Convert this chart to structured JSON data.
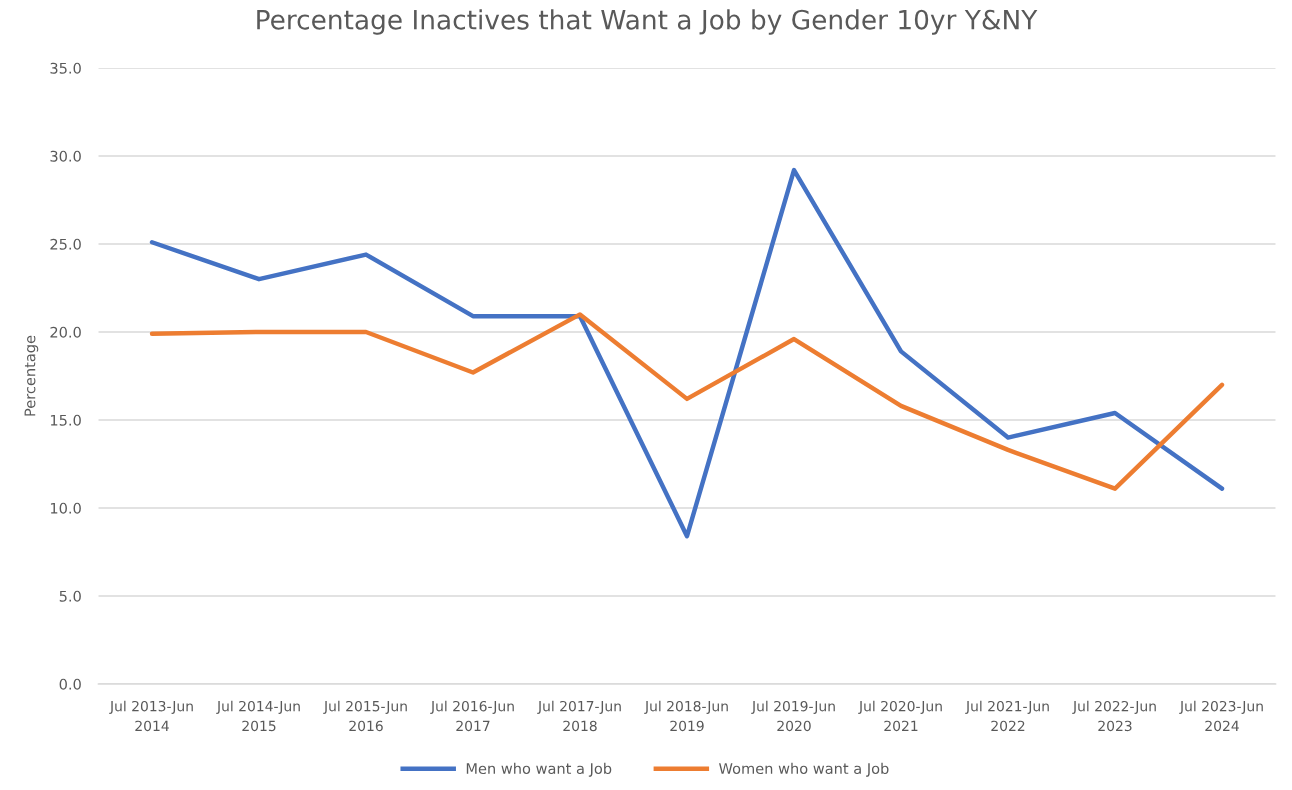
{
  "chart_data": {
    "type": "line",
    "title": "Percentage Inactives that Want a Job by Gender 10yr Y&NY",
    "ylabel": "Percentage",
    "categories": [
      "Jul 2013-Jun\n2014",
      "Jul 2014-Jun\n2015",
      "Jul 2015-Jun\n2016",
      "Jul 2016-Jun\n2017",
      "Jul 2017-Jun\n2018",
      "Jul 2018-Jun\n2019",
      "Jul 2019-Jun\n2020",
      "Jul 2020-Jun\n2021",
      "Jul 2021-Jun\n2022",
      "Jul 2022-Jun\n2023",
      "Jul 2023-Jun\n2024"
    ],
    "series": [
      {
        "name": "Men who want a Job",
        "color": "#4472c4",
        "values": [
          25.1,
          23.0,
          24.4,
          20.9,
          20.9,
          8.4,
          29.2,
          18.9,
          14.0,
          15.4,
          11.1
        ]
      },
      {
        "name": "Women who want a Job",
        "color": "#ed7d31",
        "values": [
          19.9,
          20.0,
          20.0,
          17.7,
          21.0,
          16.2,
          19.6,
          15.8,
          13.3,
          11.1,
          17.0
        ]
      }
    ],
    "ylim": [
      0,
      35
    ],
    "yticks": [
      {
        "value": 0,
        "label": "0.0"
      },
      {
        "value": 5,
        "label": "5.0"
      },
      {
        "value": 10,
        "label": "10.0"
      },
      {
        "value": 15,
        "label": "15.0"
      },
      {
        "value": 20,
        "label": "20.0"
      },
      {
        "value": 25,
        "label": "25.0"
      },
      {
        "value": 30,
        "label": "30.0"
      },
      {
        "value": 35,
        "label": "35.0"
      }
    ],
    "grid": "y",
    "legend": "bottom",
    "line_style": "solid"
  }
}
